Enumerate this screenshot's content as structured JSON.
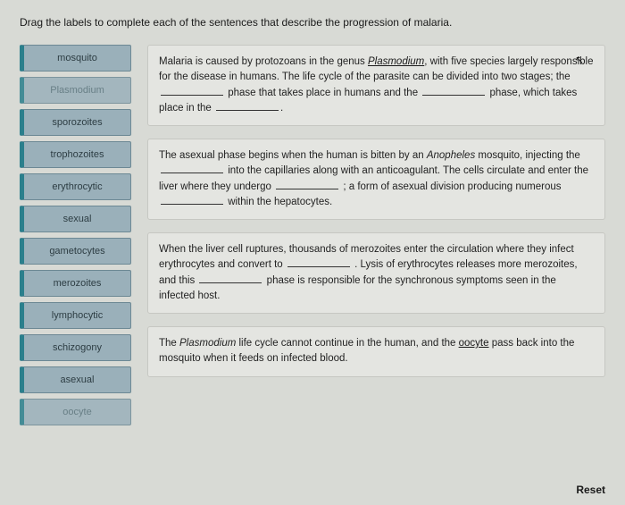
{
  "instruction": "Drag the labels to complete each of the sentences that describe the progression of malaria.",
  "labels": [
    {
      "text": "mosquito",
      "faded": false
    },
    {
      "text": "Plasmodium",
      "faded": true
    },
    {
      "text": "sporozoites",
      "faded": false
    },
    {
      "text": "trophozoites",
      "faded": false
    },
    {
      "text": "erythrocytic",
      "faded": false
    },
    {
      "text": "sexual",
      "faded": false
    },
    {
      "text": "gametocytes",
      "faded": false
    },
    {
      "text": "merozoites",
      "faded": false
    },
    {
      "text": "lymphocytic",
      "faded": false
    },
    {
      "text": "schizogony",
      "faded": false
    },
    {
      "text": "asexual",
      "faded": false
    },
    {
      "text": "oocyte",
      "faded": true
    }
  ],
  "paragraphs": {
    "p1": {
      "t1": "Malaria is caused by protozoans in the genus ",
      "link1": "Plasmodium",
      "t2": ", with five species largely responsible for the disease in humans.  The life cycle of the parasite can be divided into two stages; the ",
      "t3": " phase that takes place in humans and the ",
      "t4": " phase, which takes place in the ",
      "t5": "."
    },
    "p2": {
      "t1": "The asexual phase begins when the human is bitten by an ",
      "i1": "Anopheles",
      "t2": " mosquito, injecting the ",
      "t3": " into the capillaries along with an anticoagulant. The cells circulate and enter the liver where they undergo ",
      "t4": " ; a form of asexual division producing numerous ",
      "t5": " within the hepatocytes."
    },
    "p3": {
      "t1": "When the liver cell ruptures, thousands of merozoites enter the circulation where they infect erythrocytes and convert to ",
      "t2": " . Lysis of erythrocytes releases more merozoites, and this ",
      "t3": " phase is responsible for the synchronous symptoms seen in the infected host."
    },
    "p4": {
      "t1": "The ",
      "i1": "Plasmodium",
      "t2": " life cycle cannot continue in the human, and the ",
      "link1": "oocyte",
      "t3": " pass back into the mosquito when it feeds on infected blood."
    }
  },
  "reset_label": "Reset",
  "style": {
    "page_bg": "#d8dad5",
    "chip_bg": "#9ab0ba",
    "chip_border": "#6c8894",
    "chip_accent": "#2b7f8c",
    "para_bg": "#e4e5e1",
    "para_border": "#c6c7c2"
  }
}
